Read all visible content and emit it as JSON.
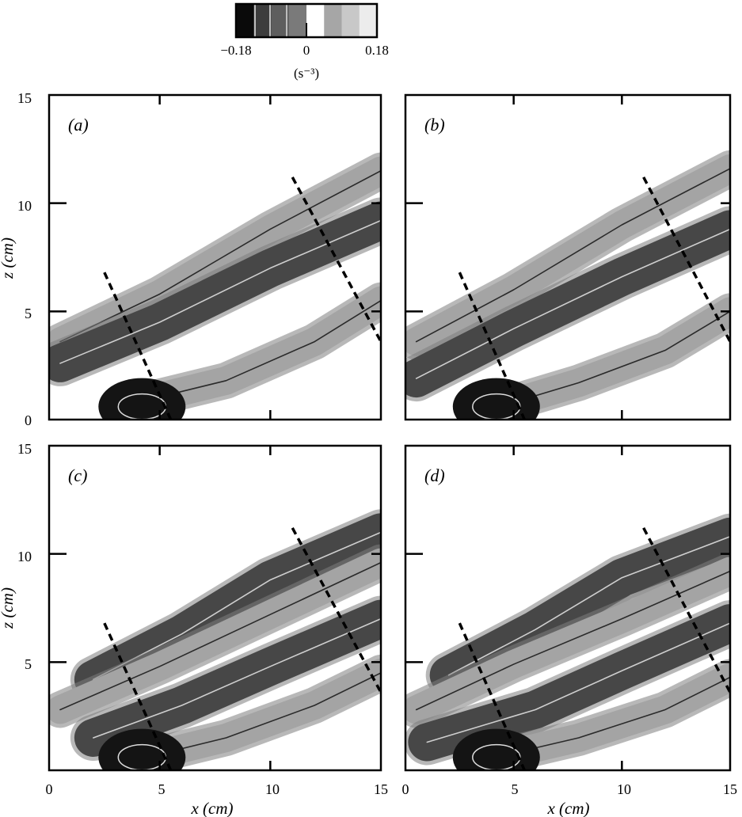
{
  "colorbar": {
    "min_label": "−0.18",
    "mid_label": "0",
    "max_label": "0.18",
    "unit_label": "(s⁻³)",
    "range": [
      -0.18,
      0.18
    ],
    "levels": [
      "#0a0a0a",
      "#3d3d3d",
      "#5e5e5e",
      "#7a7a7a",
      "#ffffff",
      "#a6a6a6",
      "#c8c8c8",
      "#ececec"
    ]
  },
  "axes": {
    "xlabel": "x (cm)",
    "ylabel": "z (cm)",
    "xlim": [
      0,
      15
    ],
    "ylim": [
      0,
      15
    ],
    "x_ticks": [
      "0",
      "5",
      "10",
      "15"
    ],
    "y_ticks": [
      "0",
      "5",
      "10",
      "15"
    ]
  },
  "chart_data": [
    {
      "type": "heatmap",
      "panel": "(a)",
      "xlim": [
        0,
        15
      ],
      "ylim": [
        0,
        15
      ],
      "dashed_lines": [
        {
          "x": [
            2.5,
            5.5
          ],
          "z": [
            6.8,
            0
          ]
        },
        {
          "x": [
            11.0,
            15.0
          ],
          "z": [
            11.2,
            3.6
          ]
        }
      ],
      "bands": [
        {
          "label": "upper positive band",
          "sign": "positive",
          "path_x": [
            0.5,
            5,
            10,
            15
          ],
          "path_z": [
            3.6,
            5.8,
            8.8,
            11.5
          ]
        },
        {
          "label": "central negative band",
          "sign": "negative",
          "path_x": [
            0.5,
            5,
            10,
            15
          ],
          "path_z": [
            2.6,
            4.5,
            7.0,
            9.2
          ]
        },
        {
          "label": "lower positive band",
          "sign": "positive",
          "path_x": [
            4,
            8,
            12,
            15
          ],
          "path_z": [
            0.8,
            1.8,
            3.6,
            5.5
          ]
        }
      ]
    },
    {
      "type": "heatmap",
      "panel": "(b)",
      "xlim": [
        0,
        15
      ],
      "ylim": [
        0,
        15
      ],
      "dashed_lines": [
        {
          "x": [
            2.5,
            5.5
          ],
          "z": [
            6.8,
            0
          ]
        },
        {
          "x": [
            11.0,
            15.0
          ],
          "z": [
            11.2,
            3.6
          ]
        }
      ],
      "bands": [
        {
          "label": "upper positive band",
          "sign": "positive",
          "path_x": [
            0.5,
            5,
            10,
            15
          ],
          "path_z": [
            3.6,
            6.0,
            9.0,
            11.6
          ]
        },
        {
          "label": "central negative band",
          "sign": "negative",
          "path_x": [
            0.5,
            5,
            10,
            15
          ],
          "path_z": [
            1.9,
            4.2,
            6.6,
            8.8
          ]
        },
        {
          "label": "lower positive band",
          "sign": "positive",
          "path_x": [
            4,
            8,
            12,
            15
          ],
          "path_z": [
            0.5,
            1.7,
            3.2,
            5.0
          ]
        }
      ]
    },
    {
      "type": "heatmap",
      "panel": "(c)",
      "xlim": [
        0,
        15
      ],
      "ylim": [
        0,
        15
      ],
      "dashed_lines": [
        {
          "x": [
            2.5,
            5.5
          ],
          "z": [
            6.8,
            0
          ]
        },
        {
          "x": [
            11.0,
            15.0
          ],
          "z": [
            11.2,
            3.6
          ]
        }
      ],
      "bands": [
        {
          "label": "upper negative band",
          "sign": "negative",
          "path_x": [
            2,
            6,
            10,
            15
          ],
          "path_z": [
            4.2,
            6.3,
            8.8,
            11.0
          ]
        },
        {
          "label": "central positive band",
          "sign": "positive",
          "path_x": [
            0.5,
            5,
            10,
            15
          ],
          "path_z": [
            2.8,
            4.8,
            7.2,
            9.6
          ]
        },
        {
          "label": "lower negative band",
          "sign": "negative",
          "path_x": [
            2,
            6,
            10,
            15
          ],
          "path_z": [
            1.5,
            3.0,
            4.8,
            7.0
          ]
        },
        {
          "label": "bottom positive band",
          "sign": "positive",
          "path_x": [
            4,
            8,
            12,
            15
          ],
          "path_z": [
            0.5,
            1.5,
            3.0,
            4.5
          ]
        }
      ]
    },
    {
      "type": "heatmap",
      "panel": "(d)",
      "xlim": [
        0,
        15
      ],
      "ylim": [
        0,
        15
      ],
      "dashed_lines": [
        {
          "x": [
            2.5,
            5.5
          ],
          "z": [
            6.8,
            0
          ]
        },
        {
          "x": [
            11.0,
            15.0
          ],
          "z": [
            11.2,
            3.6
          ]
        }
      ],
      "bands": [
        {
          "label": "upper negative band",
          "sign": "negative",
          "path_x": [
            2,
            6,
            10,
            15
          ],
          "path_z": [
            4.4,
            6.5,
            8.9,
            10.8
          ]
        },
        {
          "label": "central positive band",
          "sign": "positive",
          "path_x": [
            0.5,
            5,
            10,
            15
          ],
          "path_z": [
            2.8,
            4.9,
            7.0,
            9.2
          ]
        },
        {
          "label": "lower negative band",
          "sign": "negative",
          "path_x": [
            1,
            6,
            10,
            15
          ],
          "path_z": [
            1.3,
            2.8,
            4.6,
            6.8
          ]
        },
        {
          "label": "bottom positive band",
          "sign": "positive",
          "path_x": [
            5,
            8,
            12,
            15
          ],
          "path_z": [
            0.8,
            1.5,
            2.8,
            4.3
          ]
        }
      ]
    }
  ]
}
